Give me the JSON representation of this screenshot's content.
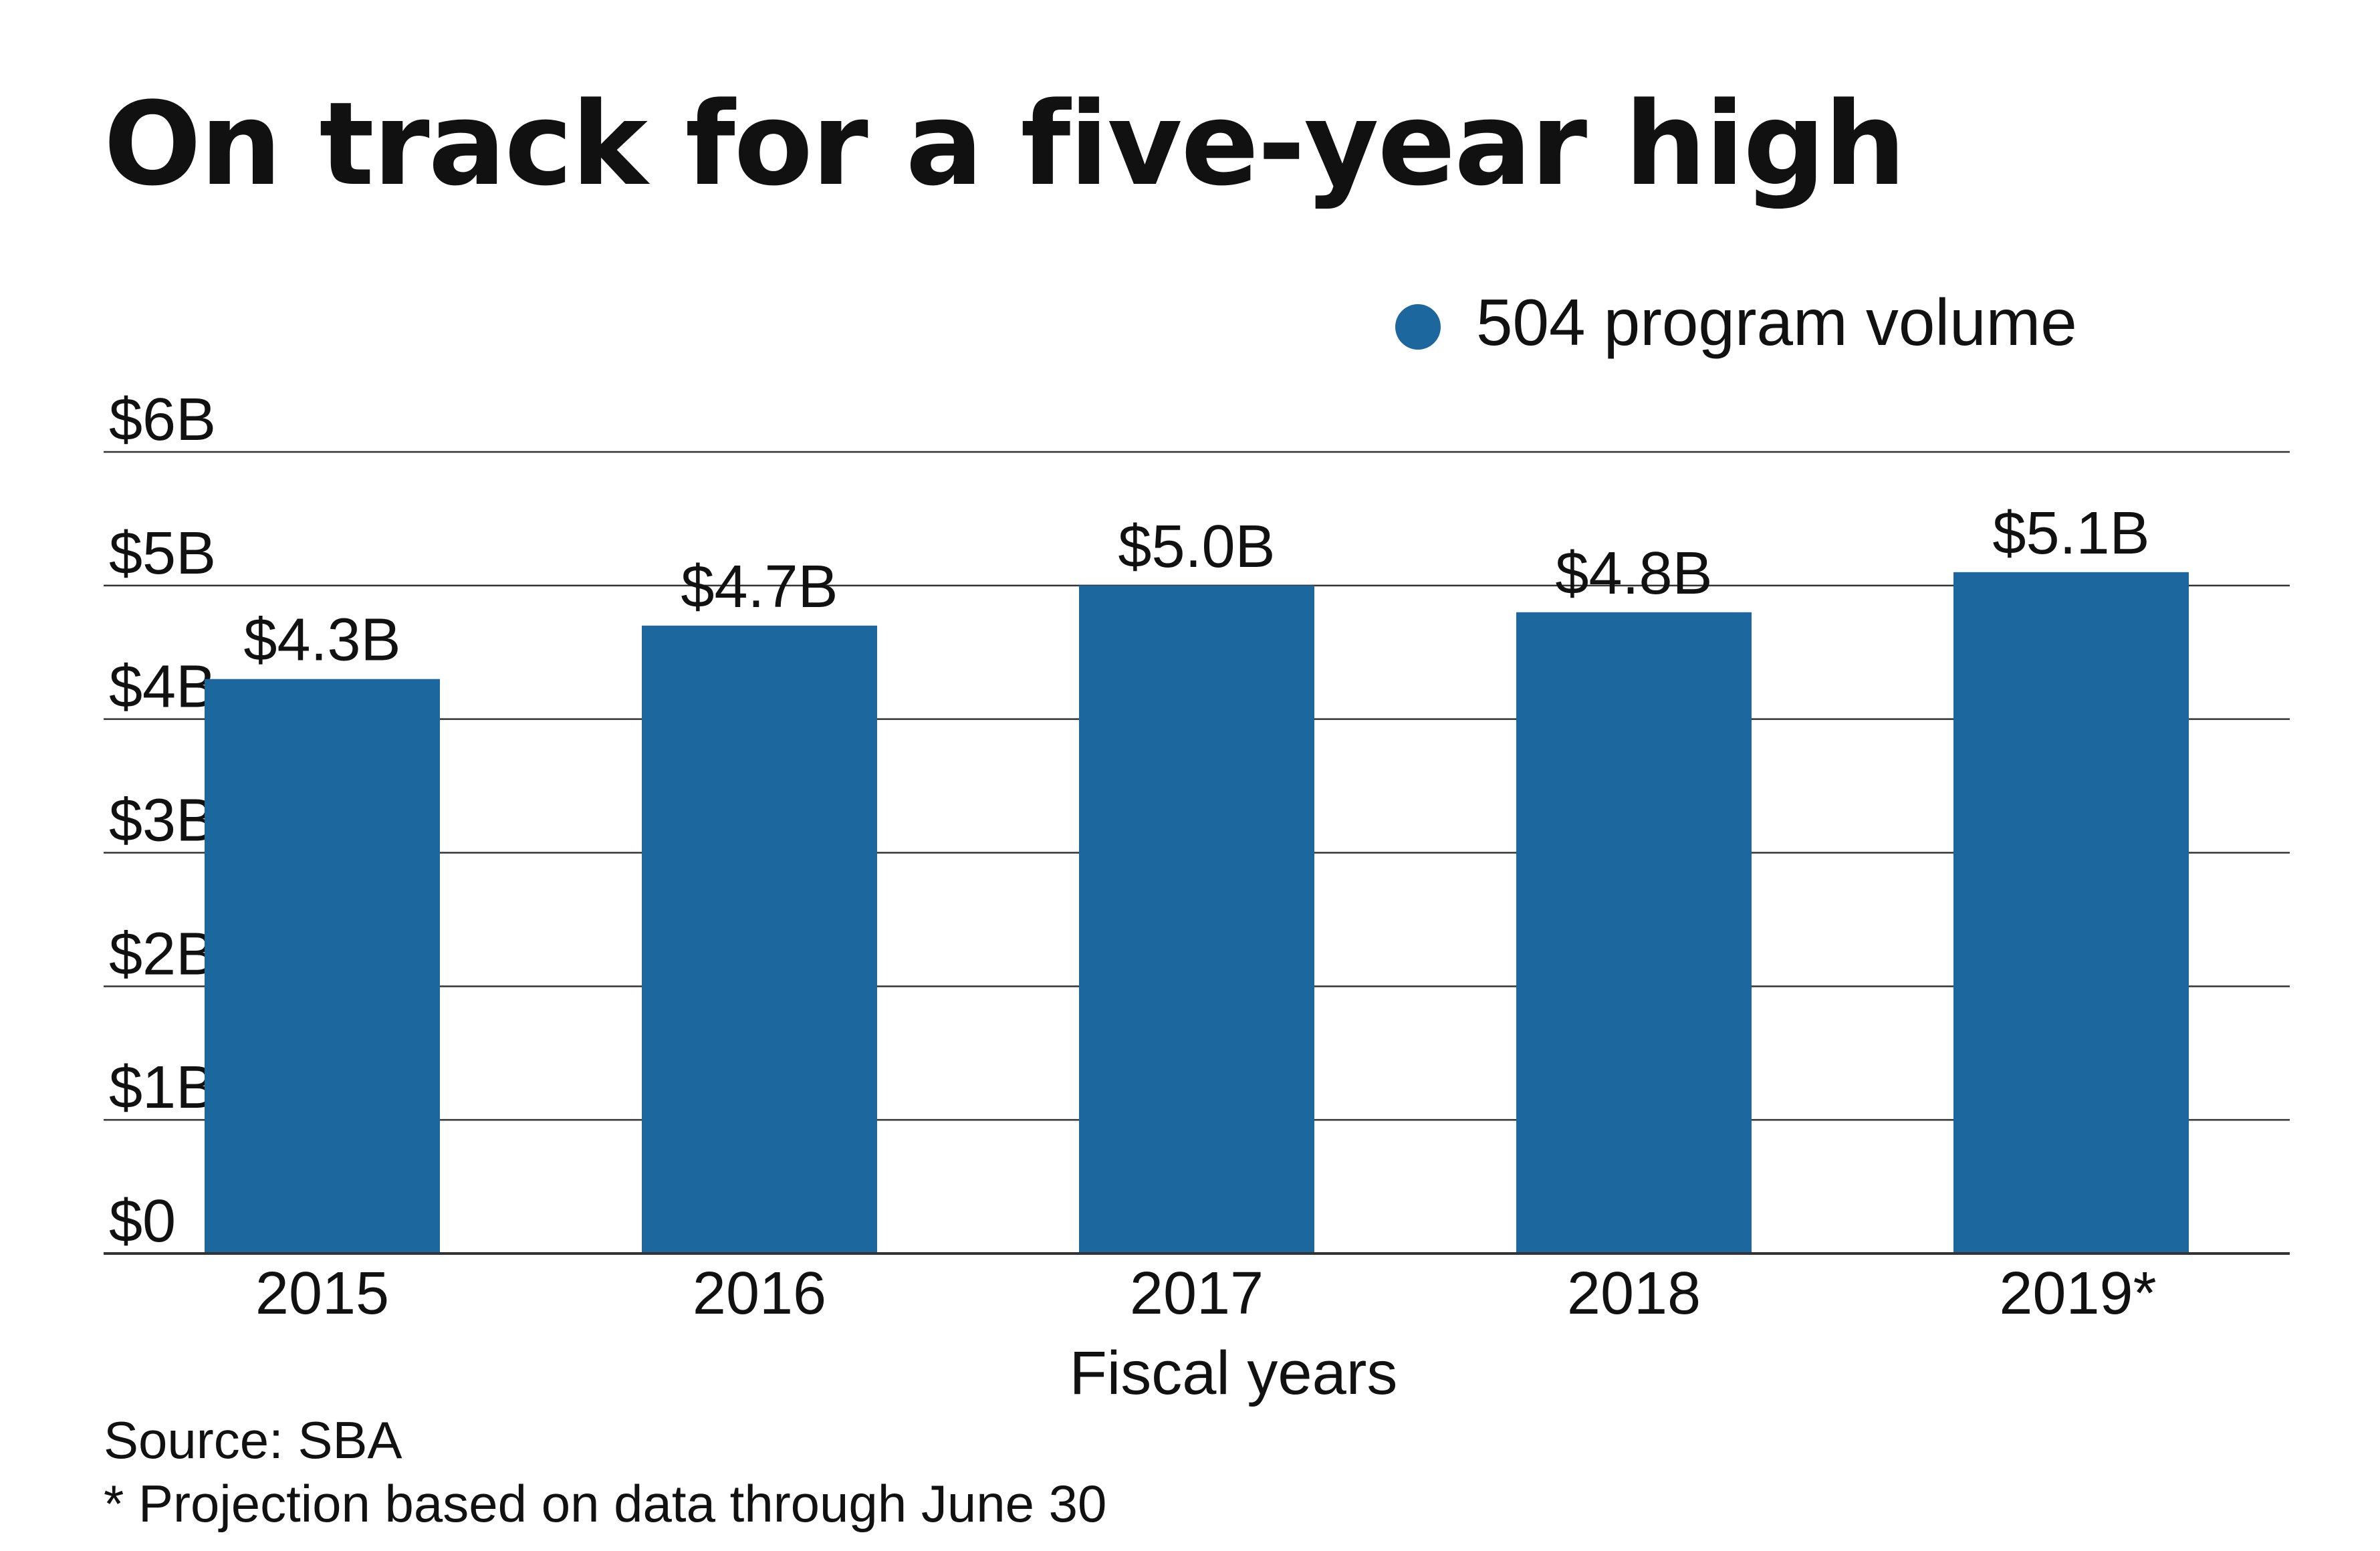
{
  "title": "On track for a five-year high",
  "source": "Source: SBA",
  "footnote": "* Projection based on data through June 30",
  "colors": {
    "bar": "#1b679e",
    "grid": "#333333",
    "text": "#111111"
  },
  "chart_data": {
    "type": "bar",
    "categories": [
      "2015",
      "2016",
      "2017",
      "2018",
      "2019*"
    ],
    "series": [
      {
        "name": "504 program volume",
        "values": [
          4.3,
          4.7,
          5.0,
          4.8,
          5.1
        ],
        "labels": [
          "$4.3B",
          "$4.7B",
          "$5.0B",
          "$4.8B",
          "$5.1B"
        ]
      }
    ],
    "xlabel": "Fiscal years",
    "ylabel": "",
    "ylim": [
      0,
      6
    ],
    "yticks": [
      0,
      1,
      2,
      3,
      4,
      5,
      6
    ],
    "ytick_labels": [
      "$0",
      "$1B",
      "$2B",
      "$3B",
      "$4B",
      "$5B",
      "$6B"
    ],
    "grid": true,
    "legend": "top-right"
  }
}
